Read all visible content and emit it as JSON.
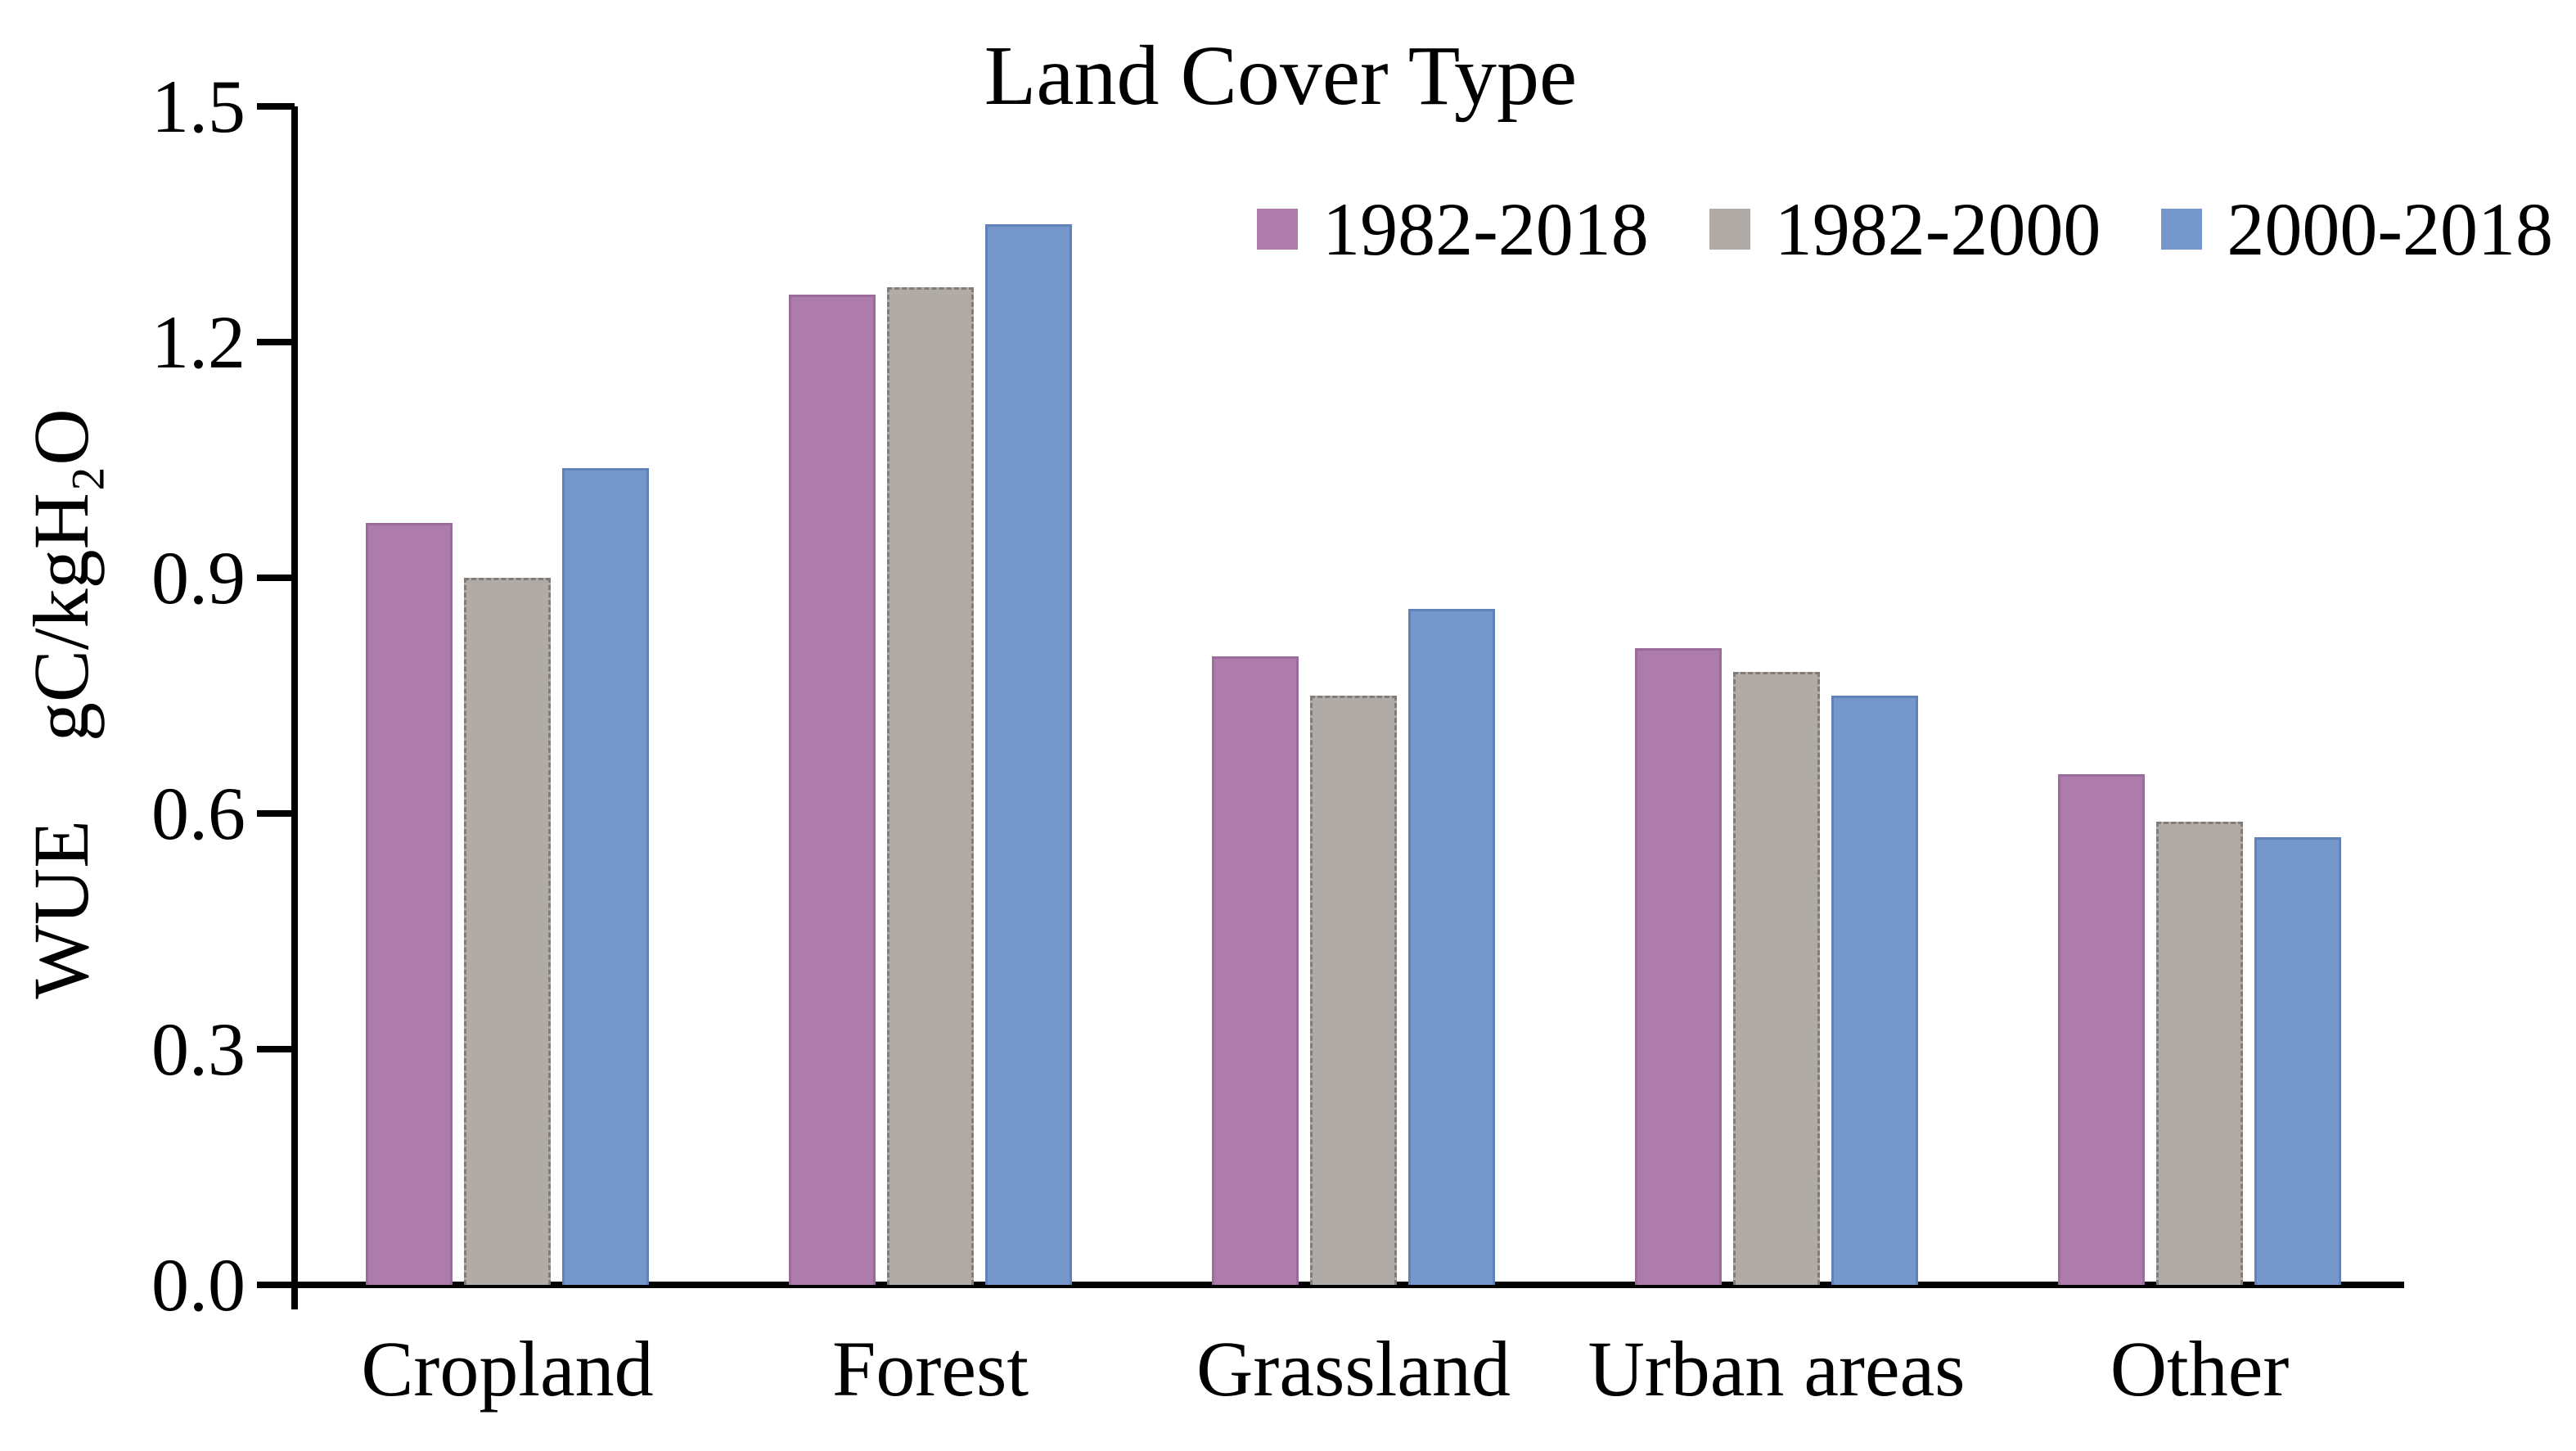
{
  "chart_data": {
    "type": "bar",
    "title": "Land Cover Type",
    "ylabel": "WUE    gC/kgH₂O",
    "xlabel": "",
    "categories": [
      "Cropland",
      "Forest",
      "Grassland",
      "Urban areas",
      "Other"
    ],
    "series": [
      {
        "name": "1982-2018",
        "color": "#ad7cab",
        "border_color": "#9a6b9d",
        "border_style": "solid",
        "values": [
          0.97,
          1.26,
          0.8,
          0.81,
          0.65
        ]
      },
      {
        "name": "1982-2000",
        "color": "#b0aba6",
        "border_color": "#817c77",
        "border_style": "dashed",
        "values": [
          0.9,
          1.27,
          0.75,
          0.78,
          0.59
        ]
      },
      {
        "name": "2000-2018",
        "color": "#7597cc",
        "border_color": "#5f82ba",
        "border_style": "solid",
        "values": [
          1.04,
          1.35,
          0.86,
          0.75,
          0.57
        ]
      }
    ],
    "yticks": [
      "0.0",
      "0.3",
      "0.6",
      "0.9",
      "1.2",
      "1.5"
    ],
    "ylim": [
      0.0,
      1.5
    ],
    "grid": false,
    "legend_position": "top-right",
    "axis_color": "#000000",
    "background_color": "#ffffff"
  }
}
